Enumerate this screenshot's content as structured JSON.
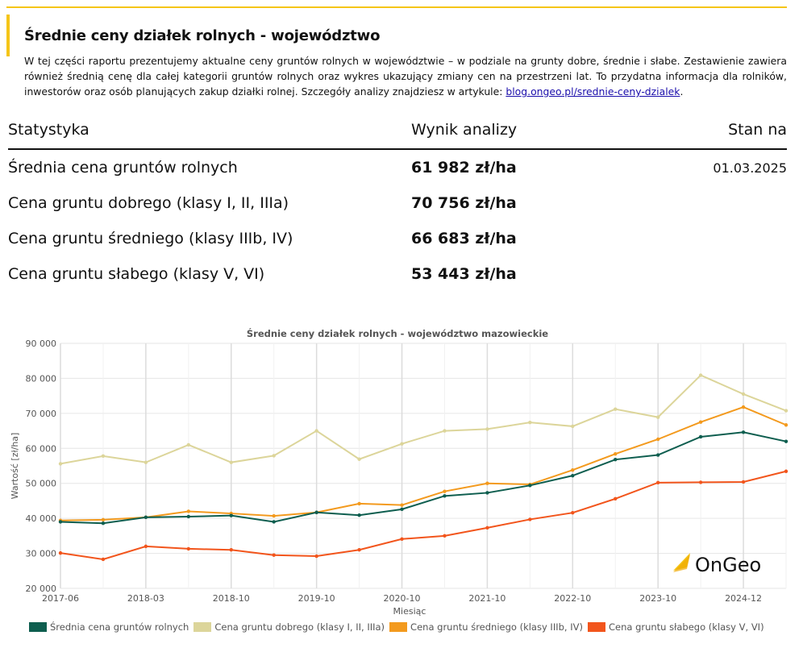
{
  "header": {
    "title": "Średnie ceny działek rolnych - województwo",
    "intro": "W tej części raportu prezentujemy aktualne ceny gruntów rolnych w województwie – w podziale na grunty dobre, średnie i słabe. Zestawienie zawiera również średnią cenę dla całej kategorii gruntów rolnych oraz wykres ukazujący zmiany cen na przestrzeni lat. To przydatna informacja dla rolników, inwestorów oraz osób planujących zakup działki rolnej. Szczegóły analizy znajdziesz w artykule: ",
    "link_text": "blog.ongeo.pl/srednie-ceny-dzialek",
    "link_suffix": ".",
    "accent_color": "#f5c518"
  },
  "stats": {
    "headers": [
      "Statystyka",
      "Wynik analizy",
      "Stan na"
    ],
    "rows": [
      {
        "label": "Średnia cena gruntów rolnych",
        "value": "61 982 zł/ha",
        "date": "01.03.2025"
      },
      {
        "label": "Cena gruntu dobrego (klasy I, II, IIIa)",
        "value": "70 756 zł/ha",
        "date": ""
      },
      {
        "label": "Cena gruntu średniego (klasy IIIb, IV)",
        "value": "66 683 zł/ha",
        "date": ""
      },
      {
        "label": "Cena gruntu słabego (klasy V, VI)",
        "value": "53 443 zł/ha",
        "date": ""
      }
    ]
  },
  "logo": {
    "text": "OnGeo",
    "color": "#f5c518"
  },
  "chart_data": {
    "type": "line",
    "title": "Średnie ceny działek rolnych - województwo mazowieckie",
    "xlabel": "Miesiąc",
    "ylabel": "Wartość [zł/ha]",
    "ylim": [
      20000,
      90000
    ],
    "y_ticks": [
      "20 000",
      "30 000",
      "40 000",
      "50 000",
      "60 000",
      "70 000",
      "80 000",
      "90 000"
    ],
    "x_ticks": [
      {
        "i": 0,
        "label": "2017-06"
      },
      {
        "i": 2,
        "label": "2018-03"
      },
      {
        "i": 4,
        "label": "2018-10"
      },
      {
        "i": 6,
        "label": "2019-10"
      },
      {
        "i": 8,
        "label": "2020-10"
      },
      {
        "i": 10,
        "label": "2021-10"
      },
      {
        "i": 12,
        "label": "2022-10"
      },
      {
        "i": 14,
        "label": "2023-10"
      },
      {
        "i": 16,
        "label": "2024-12"
      }
    ],
    "grid": true,
    "series": [
      {
        "name": "Średnia cena gruntów rolnych",
        "color": "#0e5e4f",
        "values": [
          39000,
          38600,
          40300,
          40500,
          40800,
          39000,
          41700,
          40900,
          42600,
          46400,
          47300,
          49400,
          52200,
          56800,
          58100,
          63300,
          64600,
          61982
        ]
      },
      {
        "name": "Cena gruntu dobrego (klasy I, II, IIIa)",
        "color": "#dcd59a",
        "values": [
          55600,
          57800,
          56000,
          61000,
          56000,
          57900,
          65000,
          56900,
          61300,
          65000,
          65500,
          67400,
          66300,
          71200,
          68900,
          80900,
          75500,
          70756
        ]
      },
      {
        "name": "Cena gruntu średniego (klasy IIIb, IV)",
        "color": "#f39a1e",
        "values": [
          39400,
          39600,
          40300,
          42000,
          41400,
          40700,
          41700,
          44200,
          43800,
          47700,
          50000,
          49700,
          53800,
          58400,
          62600,
          67500,
          71800,
          66683
        ]
      },
      {
        "name": "Cena gruntu słabego (klasy V, VI)",
        "color": "#f2551c",
        "values": [
          30100,
          28300,
          32000,
          31300,
          31000,
          29500,
          29200,
          31000,
          34100,
          35000,
          37300,
          39700,
          41600,
          45600,
          50200,
          50300,
          50400,
          53443
        ]
      }
    ]
  }
}
